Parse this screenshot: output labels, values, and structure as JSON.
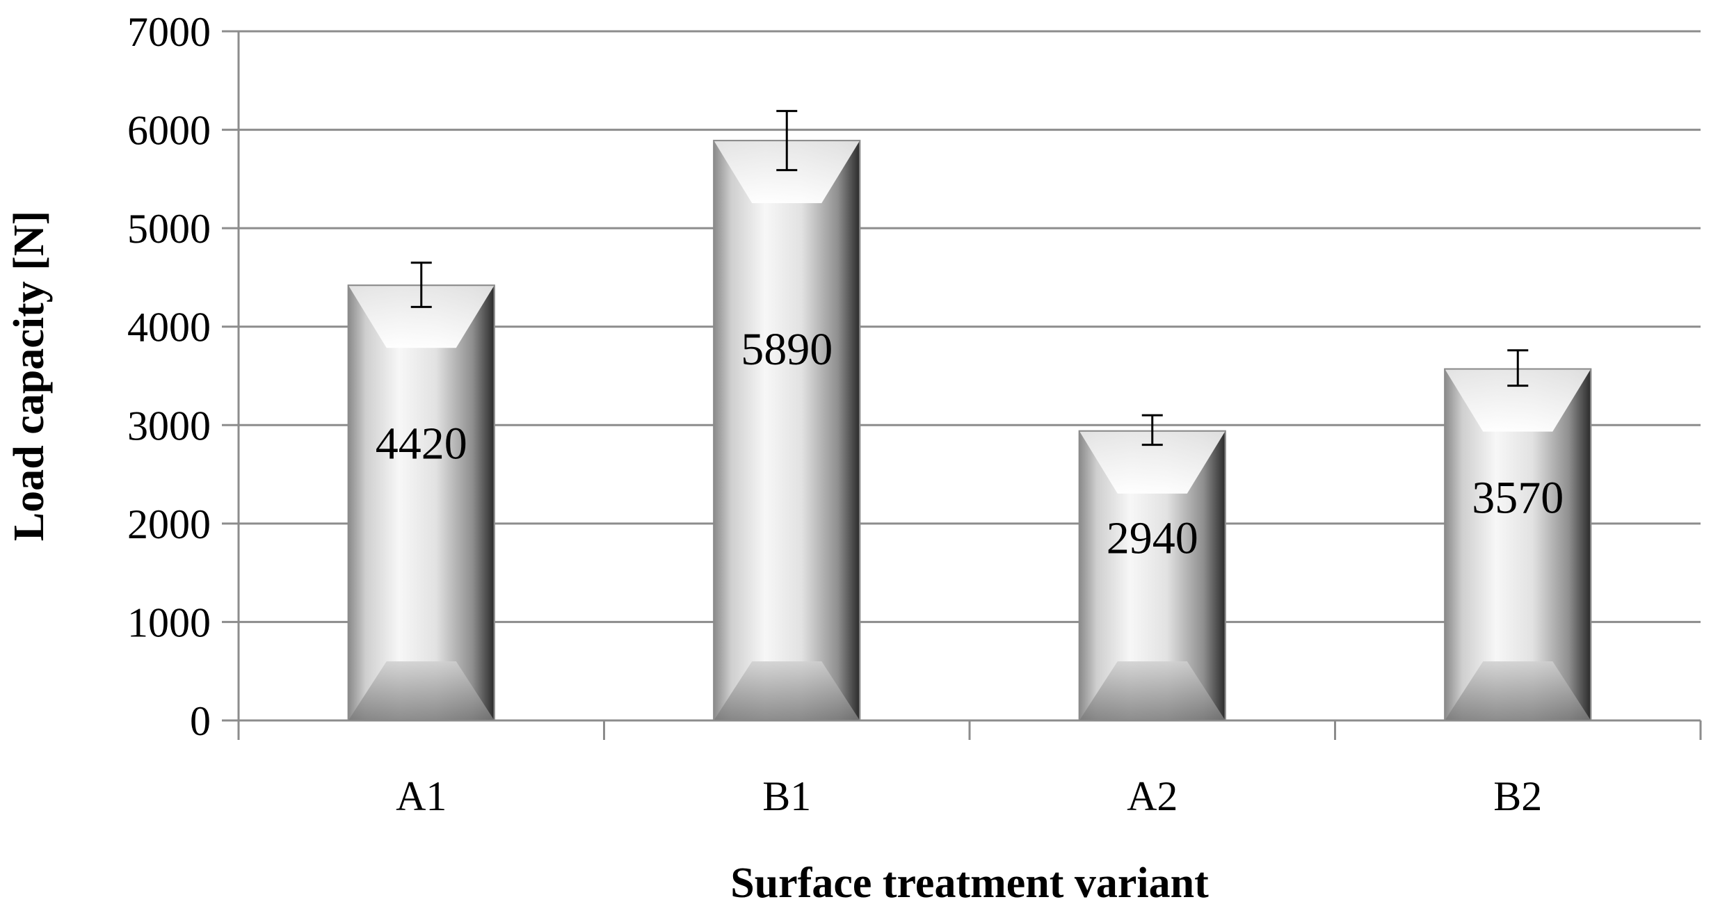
{
  "chart_data": {
    "type": "bar",
    "categories": [
      "A1",
      "B1",
      "A2",
      "B2"
    ],
    "values": [
      4420,
      5890,
      2940,
      3570
    ],
    "data_labels": [
      "4420",
      "5890",
      "2940",
      "3570"
    ],
    "error_bars": {
      "upper": [
        4650,
        6190,
        3100,
        3760
      ],
      "lower": [
        4200,
        5590,
        2800,
        3400
      ]
    },
    "xlabel": "Surface treatment variant",
    "ylabel": "Load capacity  [N]",
    "ylim": [
      0,
      7000
    ],
    "yticks": [
      "0",
      "1000",
      "2000",
      "3000",
      "4000",
      "5000",
      "6000",
      "7000"
    ],
    "grid": true,
    "bar_color": "#c8c8c8"
  }
}
